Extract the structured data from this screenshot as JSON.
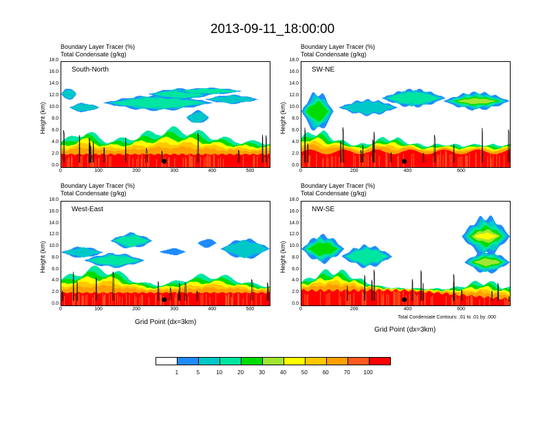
{
  "title": "2013-09-11_18:00:00",
  "colors": [
    "#ffffff",
    "#1e8cff",
    "#00c8c8",
    "#00e6a0",
    "#00dc00",
    "#a0e632",
    "#ffff00",
    "#ffc800",
    "#ffa000",
    "#ff5a1e",
    "#ff0000"
  ],
  "colorbar": {
    "labels": [
      "1",
      "5",
      "10",
      "20",
      "30",
      "40",
      "50",
      "60",
      "70",
      "100"
    ]
  },
  "footnote": "Total Condensate Contours: .01 to .01 by .000",
  "panels": [
    {
      "id": "south-north",
      "name": "South-North",
      "title1": "Boundary Layer Tracer   (%)",
      "title2": "Total Condensate   (g/kg)",
      "ylabel": "Height (km)",
      "xlabel": "",
      "xmax": 550,
      "xticks": [
        "0",
        "100",
        "200",
        "300",
        "400",
        "500"
      ],
      "yticks": [
        "0.0",
        "2.0",
        "4.0",
        "6.0",
        "8.0",
        "10.0",
        "12.0",
        "14.0",
        "16.0",
        "18.0"
      ],
      "marker": {
        "x": 272,
        "y": 1.0
      }
    },
    {
      "id": "sw-ne",
      "name": "SW-NE",
      "title1": "Boundary Layer Tracer   (%)",
      "title2": "Total Condensate   (g/kg)",
      "ylabel": "Height (km)",
      "xlabel": "",
      "xmax": 780,
      "xticks": [
        "0",
        "200",
        "400",
        "600"
      ],
      "yticks": [
        "0.0",
        "2.0",
        "4.0",
        "6.0",
        "8.0",
        "10.0",
        "12.0",
        "14.0",
        "16.0",
        "18.0"
      ],
      "marker": {
        "x": 385,
        "y": 1.0
      }
    },
    {
      "id": "west-east",
      "name": "West-East",
      "title1": "Boundary Layer Tracer   (%)",
      "title2": "Total Condensate   (g/kg)",
      "ylabel": "Height (km)",
      "xlabel": "Grid Point (dx=3km)",
      "xmax": 550,
      "xticks": [
        "0",
        "100",
        "200",
        "300",
        "400",
        "500"
      ],
      "yticks": [
        "0.0",
        "2.0",
        "4.0",
        "6.0",
        "8.0",
        "10.0",
        "12.0",
        "14.0",
        "16.0",
        "18.0"
      ],
      "marker": {
        "x": 272,
        "y": 1.0
      }
    },
    {
      "id": "nw-se",
      "name": "NW-SE",
      "title1": "Boundary Layer Tracer   (%)",
      "title2": "Total Condensate   (g/kg)",
      "ylabel": "Height (km)",
      "xlabel": "Grid Point (dx=3km)",
      "xmax": 780,
      "xticks": [
        "0",
        "200",
        "400",
        "600"
      ],
      "yticks": [
        "0.0",
        "2.0",
        "4.0",
        "6.0",
        "8.0",
        "10.0",
        "12.0",
        "14.0",
        "16.0",
        "18.0"
      ],
      "marker": {
        "x": 385,
        "y": 1.0
      }
    }
  ],
  "chart_data": {
    "type": "heatmap",
    "title": "2013-09-11_18:00:00",
    "variable": "Boundary Layer Tracer (%)",
    "contour_variable": "Total Condensate (g/kg)",
    "levels": [
      1,
      5,
      10,
      20,
      30,
      40,
      50,
      60,
      70,
      100
    ],
    "ylabel": "Height (km)",
    "xlabel": "Grid Point (dx=3km)",
    "ylim": [
      0,
      18
    ],
    "cross_sections": [
      {
        "name": "South-North",
        "xlim": [
          0,
          550
        ]
      },
      {
        "name": "SW-NE",
        "xlim": [
          0,
          780
        ]
      },
      {
        "name": "West-East",
        "xlim": [
          0,
          550
        ]
      },
      {
        "name": "NW-SE",
        "xlim": [
          0,
          780
        ]
      }
    ]
  }
}
